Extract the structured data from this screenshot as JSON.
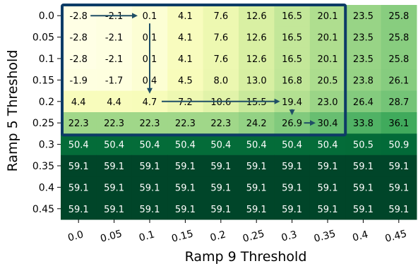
{
  "chart_data": {
    "type": "heatmap",
    "title": "",
    "xlabel": "Ramp 9 Threshold",
    "ylabel": "Ramp 5 Threshold",
    "x_categories": [
      "0.0",
      "0.05",
      "0.1",
      "0.15",
      "0.2",
      "0.25",
      "0.3",
      "0.35",
      "0.4",
      "0.45"
    ],
    "y_categories": [
      "0.0",
      "0.05",
      "0.1",
      "0.15",
      "0.2",
      "0.25",
      "0.3",
      "0.35",
      "0.4",
      "0.45"
    ],
    "values": [
      [
        -2.8,
        -2.1,
        0.1,
        4.1,
        7.6,
        12.6,
        16.5,
        20.1,
        23.5,
        25.8
      ],
      [
        -2.8,
        -2.1,
        0.1,
        4.1,
        7.6,
        12.6,
        16.5,
        20.1,
        23.5,
        25.8
      ],
      [
        -2.8,
        -2.1,
        0.1,
        4.1,
        7.6,
        12.6,
        16.5,
        20.1,
        23.5,
        25.8
      ],
      [
        -1.9,
        -1.7,
        0.4,
        4.5,
        8.0,
        13.0,
        16.8,
        20.5,
        23.8,
        26.1
      ],
      [
        4.4,
        4.4,
        4.7,
        7.2,
        10.6,
        15.5,
        19.4,
        23.0,
        26.4,
        28.7
      ],
      [
        22.3,
        22.3,
        22.3,
        22.3,
        22.3,
        24.2,
        26.9,
        30.4,
        33.8,
        36.1
      ],
      [
        50.4,
        50.4,
        50.4,
        50.4,
        50.4,
        50.4,
        50.4,
        50.4,
        50.5,
        50.9
      ],
      [
        59.1,
        59.1,
        59.1,
        59.1,
        59.1,
        59.1,
        59.1,
        59.1,
        59.1,
        59.1
      ],
      [
        59.1,
        59.1,
        59.1,
        59.1,
        59.1,
        59.1,
        59.1,
        59.1,
        59.1,
        59.1
      ],
      [
        59.1,
        59.1,
        59.1,
        59.1,
        59.1,
        59.1,
        59.1,
        59.1,
        59.1,
        59.1
      ]
    ],
    "colormap": "YlGn",
    "value_range": [
      -2.8,
      59.1
    ],
    "highlight_region": {
      "x_range": [
        "0.0",
        "0.35"
      ],
      "y_range": [
        "0.0",
        "0.25"
      ],
      "color": "#0d3b66"
    },
    "path_cells": [
      [
        0,
        0
      ],
      [
        0,
        2
      ],
      [
        4,
        2
      ],
      [
        4,
        6
      ],
      [
        5,
        6
      ],
      [
        5,
        7
      ]
    ],
    "path_color": "#1f4e66",
    "grid": false,
    "legend": "none"
  }
}
